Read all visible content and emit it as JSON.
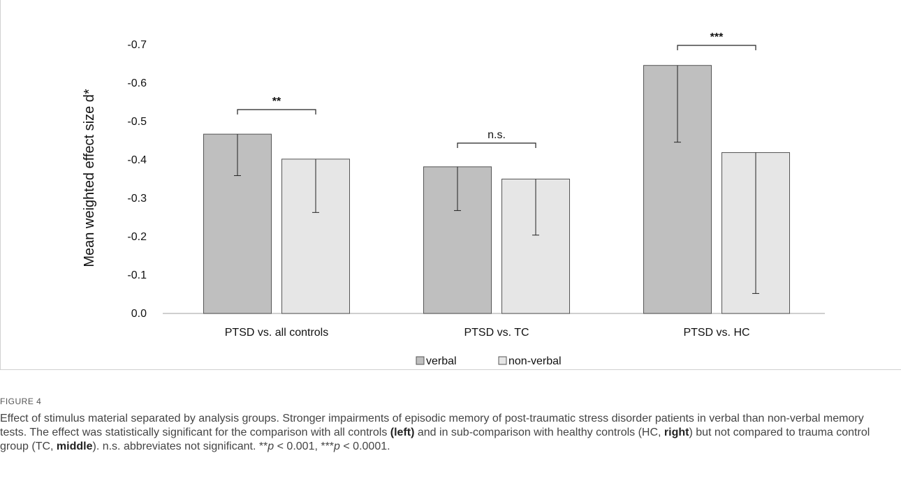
{
  "chart_data": {
    "type": "bar",
    "categories": [
      "PTSD vs. all controls",
      "PTSD vs. TC",
      "PTSD vs. HC"
    ],
    "series": [
      {
        "name": "verbal",
        "values": [
          -0.467,
          -0.382,
          -0.646
        ],
        "err_low": [
          -0.359,
          -0.268,
          -0.446
        ],
        "color": "#bfbfbf"
      },
      {
        "name": "non-verbal",
        "values": [
          -0.402,
          -0.35,
          -0.419
        ],
        "err_low": [
          -0.263,
          -0.204,
          -0.052
        ],
        "color": "#e6e6e6"
      }
    ],
    "ylabel": "Mean weighted effect size d*",
    "ylim": [
      0.0,
      -0.7
    ],
    "yticks": [
      0.0,
      -0.1,
      -0.2,
      -0.3,
      -0.4,
      -0.5,
      -0.6,
      -0.7
    ],
    "ytick_labels": [
      "0.0",
      "-0.1",
      "-0.2",
      "-0.3",
      "-0.4",
      "-0.5",
      "-0.6",
      "-0.7"
    ],
    "significance": [
      "**",
      "n.s.",
      "***"
    ],
    "legend": "bottom",
    "grid": false
  },
  "caption": {
    "figure_label": "FIGURE 4",
    "text_1": "Effect of stimulus material separated by analysis groups. Stronger impairments of episodic memory of post-traumatic stress disorder patients in verbal than non-verbal memory tests. The effect was statistically significant for the comparison with all controls ",
    "bold_left": "(left)",
    "text_2": " and in sub-comparison with healthy controls (HC, ",
    "bold_right": "right",
    "text_3": ") but not compared to trauma control group (TC, ",
    "bold_middle": "middle",
    "text_4": "). n.s. abbreviates not significant. **",
    "p_1": "p",
    "text_5": " < 0.001, ***",
    "p_2": "p",
    "text_6": " < 0.0001."
  }
}
